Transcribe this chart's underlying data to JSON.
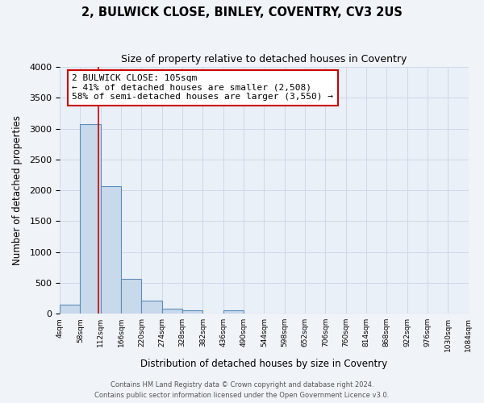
{
  "title": "2, BULWICK CLOSE, BINLEY, COVENTRY, CV3 2US",
  "subtitle": "Size of property relative to detached houses in Coventry",
  "xlabel": "Distribution of detached houses by size in Coventry",
  "ylabel": "Number of detached properties",
  "bin_edges": [
    4,
    58,
    112,
    166,
    220,
    274,
    328,
    382,
    436,
    490,
    544,
    598,
    652,
    706,
    760,
    814,
    868,
    922,
    976,
    1030,
    1084
  ],
  "bar_heights": [
    150,
    3070,
    2070,
    560,
    210,
    75,
    50,
    0,
    55,
    0,
    0,
    0,
    0,
    0,
    0,
    0,
    0,
    0,
    0,
    0
  ],
  "bar_color": "#c9d9ec",
  "bar_edge_color": "#5b8db8",
  "bar_edge_width": 0.8,
  "grid_color": "#d0d8e8",
  "background_color": "#eaf0f8",
  "fig_background_color": "#f0f4f8",
  "property_value": 105,
  "marker_line_color": "#cc0000",
  "annotation_text": "2 BULWICK CLOSE: 105sqm\n← 41% of detached houses are smaller (2,508)\n58% of semi-detached houses are larger (3,550) →",
  "annotation_box_color": "#ffffff",
  "annotation_box_edge_color": "#cc0000",
  "ylim": [
    0,
    4000
  ],
  "yticks": [
    0,
    500,
    1000,
    1500,
    2000,
    2500,
    3000,
    3500,
    4000
  ],
  "footer_line1": "Contains HM Land Registry data © Crown copyright and database right 2024.",
  "footer_line2": "Contains public sector information licensed under the Open Government Licence v3.0.",
  "tick_labels": [
    "4sqm",
    "58sqm",
    "112sqm",
    "166sqm",
    "220sqm",
    "274sqm",
    "328sqm",
    "382sqm",
    "436sqm",
    "490sqm",
    "544sqm",
    "598sqm",
    "652sqm",
    "706sqm",
    "760sqm",
    "814sqm",
    "868sqm",
    "922sqm",
    "976sqm",
    "1030sqm",
    "1084sqm"
  ]
}
